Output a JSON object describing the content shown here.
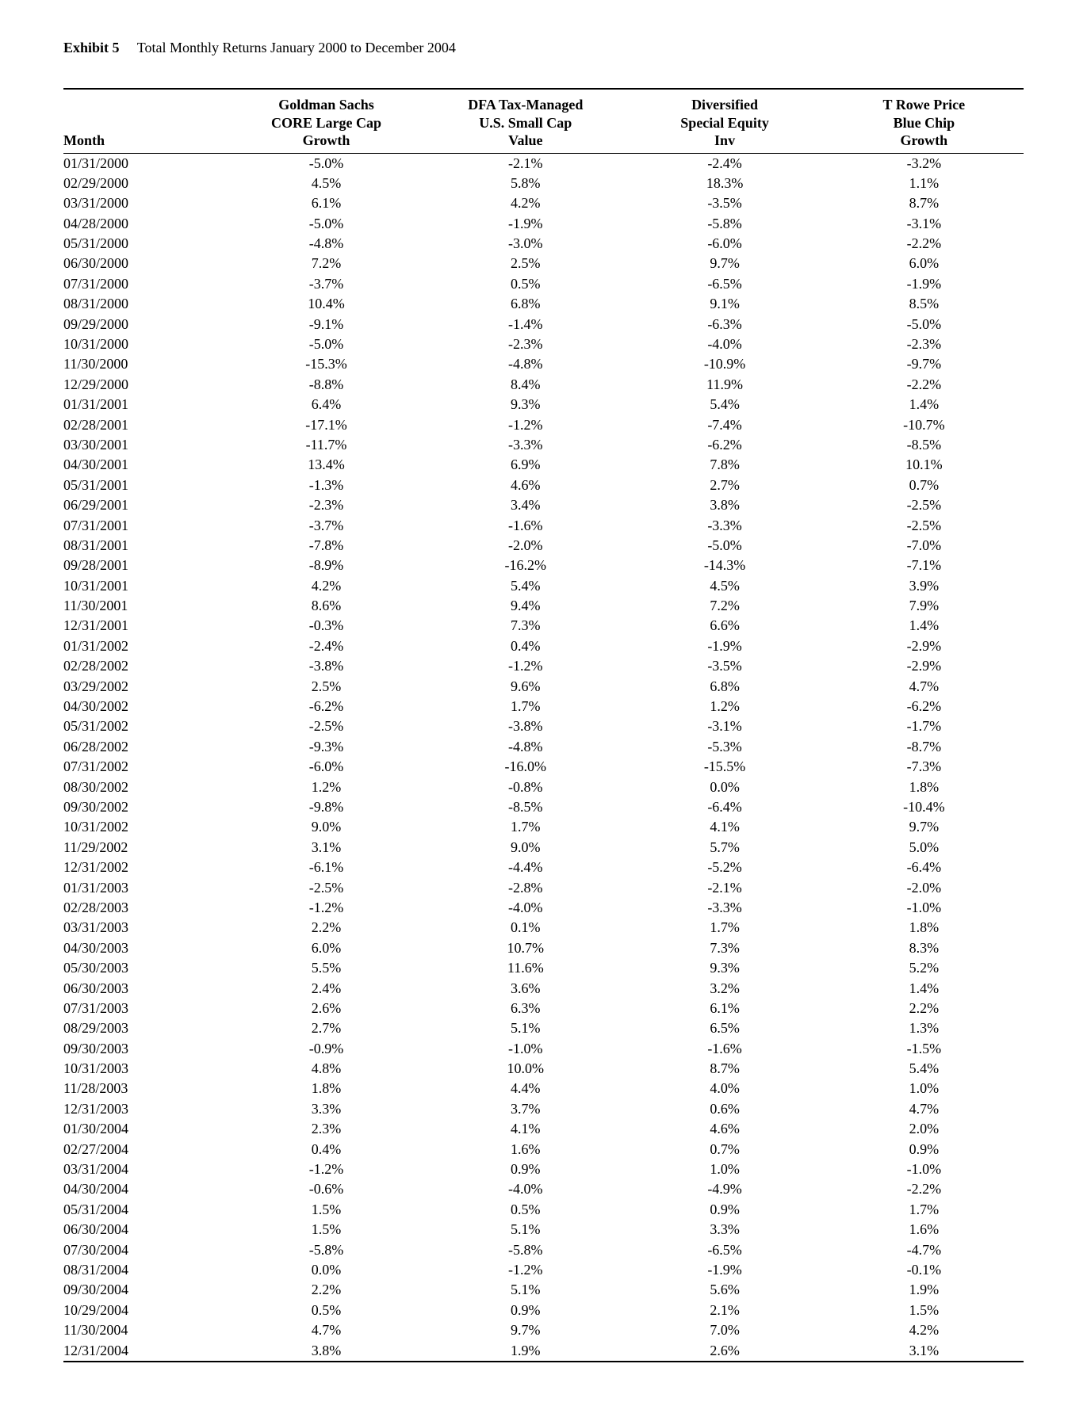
{
  "exhibit": {
    "label": "Exhibit 5",
    "title": "Total Monthly Returns January 2000 to December 2004"
  },
  "table": {
    "month_header": "Month",
    "columns": [
      {
        "h1": "Goldman Sachs",
        "h2": "CORE Large Cap",
        "h3": "Growth"
      },
      {
        "h1": "DFA Tax-Managed",
        "h2": "U.S. Small Cap",
        "h3": "Value"
      },
      {
        "h1": "Diversified",
        "h2": "Special Equity",
        "h3": "Inv"
      },
      {
        "h1": "T Rowe Price",
        "h2": "Blue Chip",
        "h3": "Growth"
      }
    ],
    "rows": [
      {
        "month": "01/31/2000",
        "v": [
          "-5.0%",
          "-2.1%",
          "-2.4%",
          "-3.2%"
        ]
      },
      {
        "month": "02/29/2000",
        "v": [
          "4.5%",
          "5.8%",
          "18.3%",
          "1.1%"
        ]
      },
      {
        "month": "03/31/2000",
        "v": [
          "6.1%",
          "4.2%",
          "-3.5%",
          "8.7%"
        ]
      },
      {
        "month": "04/28/2000",
        "v": [
          "-5.0%",
          "-1.9%",
          "-5.8%",
          "-3.1%"
        ]
      },
      {
        "month": "05/31/2000",
        "v": [
          "-4.8%",
          "-3.0%",
          "-6.0%",
          "-2.2%"
        ]
      },
      {
        "month": "06/30/2000",
        "v": [
          "7.2%",
          "2.5%",
          "9.7%",
          "6.0%"
        ]
      },
      {
        "month": "07/31/2000",
        "v": [
          "-3.7%",
          "0.5%",
          "-6.5%",
          "-1.9%"
        ]
      },
      {
        "month": "08/31/2000",
        "v": [
          "10.4%",
          "6.8%",
          "9.1%",
          "8.5%"
        ]
      },
      {
        "month": "09/29/2000",
        "v": [
          "-9.1%",
          "-1.4%",
          "-6.3%",
          "-5.0%"
        ]
      },
      {
        "month": "10/31/2000",
        "v": [
          "-5.0%",
          "-2.3%",
          "-4.0%",
          "-2.3%"
        ]
      },
      {
        "month": "11/30/2000",
        "v": [
          "-15.3%",
          "-4.8%",
          "-10.9%",
          "-9.7%"
        ]
      },
      {
        "month": "12/29/2000",
        "v": [
          "-8.8%",
          "8.4%",
          "11.9%",
          "-2.2%"
        ]
      },
      {
        "month": "01/31/2001",
        "v": [
          "6.4%",
          "9.3%",
          "5.4%",
          "1.4%"
        ]
      },
      {
        "month": "02/28/2001",
        "v": [
          "-17.1%",
          "-1.2%",
          "-7.4%",
          "-10.7%"
        ]
      },
      {
        "month": "03/30/2001",
        "v": [
          "-11.7%",
          "-3.3%",
          "-6.2%",
          "-8.5%"
        ]
      },
      {
        "month": "04/30/2001",
        "v": [
          "13.4%",
          "6.9%",
          "7.8%",
          "10.1%"
        ]
      },
      {
        "month": "05/31/2001",
        "v": [
          "-1.3%",
          "4.6%",
          "2.7%",
          "0.7%"
        ]
      },
      {
        "month": "06/29/2001",
        "v": [
          "-2.3%",
          "3.4%",
          "3.8%",
          "-2.5%"
        ]
      },
      {
        "month": "07/31/2001",
        "v": [
          "-3.7%",
          "-1.6%",
          "-3.3%",
          "-2.5%"
        ]
      },
      {
        "month": "08/31/2001",
        "v": [
          "-7.8%",
          "-2.0%",
          "-5.0%",
          "-7.0%"
        ]
      },
      {
        "month": "09/28/2001",
        "v": [
          "-8.9%",
          "-16.2%",
          "-14.3%",
          "-7.1%"
        ]
      },
      {
        "month": "10/31/2001",
        "v": [
          "4.2%",
          "5.4%",
          "4.5%",
          "3.9%"
        ]
      },
      {
        "month": "11/30/2001",
        "v": [
          "8.6%",
          "9.4%",
          "7.2%",
          "7.9%"
        ]
      },
      {
        "month": "12/31/2001",
        "v": [
          "-0.3%",
          "7.3%",
          "6.6%",
          "1.4%"
        ]
      },
      {
        "month": "01/31/2002",
        "v": [
          "-2.4%",
          "0.4%",
          "-1.9%",
          "-2.9%"
        ]
      },
      {
        "month": "02/28/2002",
        "v": [
          "-3.8%",
          "-1.2%",
          "-3.5%",
          "-2.9%"
        ]
      },
      {
        "month": "03/29/2002",
        "v": [
          "2.5%",
          "9.6%",
          "6.8%",
          "4.7%"
        ]
      },
      {
        "month": "04/30/2002",
        "v": [
          "-6.2%",
          "1.7%",
          "1.2%",
          "-6.2%"
        ]
      },
      {
        "month": "05/31/2002",
        "v": [
          "-2.5%",
          "-3.8%",
          "-3.1%",
          "-1.7%"
        ]
      },
      {
        "month": "06/28/2002",
        "v": [
          "-9.3%",
          "-4.8%",
          "-5.3%",
          "-8.7%"
        ]
      },
      {
        "month": "07/31/2002",
        "v": [
          "-6.0%",
          "-16.0%",
          "-15.5%",
          "-7.3%"
        ]
      },
      {
        "month": "08/30/2002",
        "v": [
          "1.2%",
          "-0.8%",
          "0.0%",
          "1.8%"
        ]
      },
      {
        "month": "09/30/2002",
        "v": [
          "-9.8%",
          "-8.5%",
          "-6.4%",
          "-10.4%"
        ]
      },
      {
        "month": "10/31/2002",
        "v": [
          "9.0%",
          "1.7%",
          "4.1%",
          "9.7%"
        ]
      },
      {
        "month": "11/29/2002",
        "v": [
          "3.1%",
          "9.0%",
          "5.7%",
          "5.0%"
        ]
      },
      {
        "month": "12/31/2002",
        "v": [
          "-6.1%",
          "-4.4%",
          "-5.2%",
          "-6.4%"
        ]
      },
      {
        "month": "01/31/2003",
        "v": [
          "-2.5%",
          "-2.8%",
          "-2.1%",
          "-2.0%"
        ]
      },
      {
        "month": "02/28/2003",
        "v": [
          "-1.2%",
          "-4.0%",
          "-3.3%",
          "-1.0%"
        ]
      },
      {
        "month": "03/31/2003",
        "v": [
          "2.2%",
          "0.1%",
          "1.7%",
          "1.8%"
        ]
      },
      {
        "month": "04/30/2003",
        "v": [
          "6.0%",
          "10.7%",
          "7.3%",
          "8.3%"
        ]
      },
      {
        "month": "05/30/2003",
        "v": [
          "5.5%",
          "11.6%",
          "9.3%",
          "5.2%"
        ]
      },
      {
        "month": "06/30/2003",
        "v": [
          "2.4%",
          "3.6%",
          "3.2%",
          "1.4%"
        ]
      },
      {
        "month": "07/31/2003",
        "v": [
          "2.6%",
          "6.3%",
          "6.1%",
          "2.2%"
        ]
      },
      {
        "month": "08/29/2003",
        "v": [
          "2.7%",
          "5.1%",
          "6.5%",
          "1.3%"
        ]
      },
      {
        "month": "09/30/2003",
        "v": [
          "-0.9%",
          "-1.0%",
          "-1.6%",
          "-1.5%"
        ]
      },
      {
        "month": "10/31/2003",
        "v": [
          "4.8%",
          "10.0%",
          "8.7%",
          "5.4%"
        ]
      },
      {
        "month": "11/28/2003",
        "v": [
          "1.8%",
          "4.4%",
          "4.0%",
          "1.0%"
        ]
      },
      {
        "month": "12/31/2003",
        "v": [
          "3.3%",
          "3.7%",
          "0.6%",
          "4.7%"
        ]
      },
      {
        "month": "01/30/2004",
        "v": [
          "2.3%",
          "4.1%",
          "4.6%",
          "2.0%"
        ]
      },
      {
        "month": "02/27/2004",
        "v": [
          "0.4%",
          "1.6%",
          "0.7%",
          "0.9%"
        ]
      },
      {
        "month": "03/31/2004",
        "v": [
          "-1.2%",
          "0.9%",
          "1.0%",
          "-1.0%"
        ]
      },
      {
        "month": "04/30/2004",
        "v": [
          "-0.6%",
          "-4.0%",
          "-4.9%",
          "-2.2%"
        ]
      },
      {
        "month": "05/31/2004",
        "v": [
          "1.5%",
          "0.5%",
          "0.9%",
          "1.7%"
        ]
      },
      {
        "month": "06/30/2004",
        "v": [
          "1.5%",
          "5.1%",
          "3.3%",
          "1.6%"
        ]
      },
      {
        "month": "07/30/2004",
        "v": [
          "-5.8%",
          "-5.8%",
          "-6.5%",
          "-4.7%"
        ]
      },
      {
        "month": "08/31/2004",
        "v": [
          "0.0%",
          "-1.2%",
          "-1.9%",
          "-0.1%"
        ]
      },
      {
        "month": "09/30/2004",
        "v": [
          "2.2%",
          "5.1%",
          "5.6%",
          "1.9%"
        ]
      },
      {
        "month": "10/29/2004",
        "v": [
          "0.5%",
          "0.9%",
          "2.1%",
          "1.5%"
        ]
      },
      {
        "month": "11/30/2004",
        "v": [
          "4.7%",
          "9.7%",
          "7.0%",
          "4.2%"
        ]
      },
      {
        "month": "12/31/2004",
        "v": [
          "3.8%",
          "1.9%",
          "2.6%",
          "3.1%"
        ]
      }
    ]
  }
}
